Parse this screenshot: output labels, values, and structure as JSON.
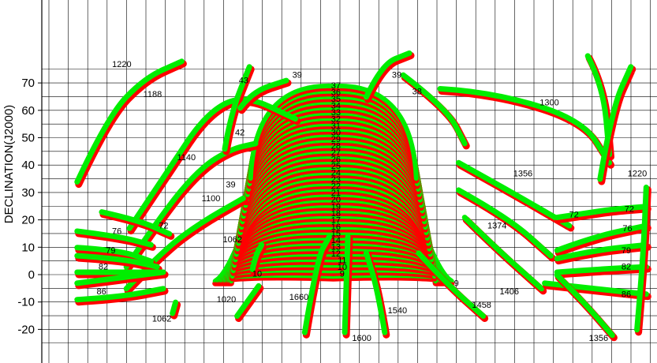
{
  "chart_data": {
    "type": "line",
    "ylabel": "DECLINATION(J2000)",
    "ylim": [
      -25,
      78
    ],
    "yticks": [
      -20,
      -10,
      0,
      10,
      20,
      30,
      40,
      50,
      60,
      70
    ],
    "grid": true,
    "colors": {
      "track_a": "#ff0000",
      "track_b": "#00ee00",
      "grid": "#000000"
    },
    "dome": {
      "bottom_dec": -1.5,
      "top_dec": 68,
      "arcs": 36,
      "row_labels": [
        "9",
        "10",
        "11",
        "12",
        "13",
        "14",
        "15",
        "16",
        "17",
        "18",
        "19",
        "20",
        "21",
        "22",
        "23",
        "24",
        "25",
        "26",
        "27",
        "28",
        "29",
        "30",
        "31",
        "32",
        "33",
        "34",
        "35",
        "36",
        "37"
      ]
    },
    "labels": [
      {
        "text": "1220",
        "x": 0.13,
        "y": 77
      },
      {
        "text": "1188",
        "x": 0.18,
        "y": 66
      },
      {
        "text": "1140",
        "x": 0.235,
        "y": 43
      },
      {
        "text": "1100",
        "x": 0.275,
        "y": 28
      },
      {
        "text": "1062",
        "x": 0.31,
        "y": 13
      },
      {
        "text": "1020",
        "x": 0.3,
        "y": -9
      },
      {
        "text": "1062",
        "x": 0.195,
        "y": -16
      },
      {
        "text": "43",
        "x": 0.328,
        "y": 71
      },
      {
        "text": "42",
        "x": 0.322,
        "y": 52
      },
      {
        "text": "39",
        "x": 0.307,
        "y": 33
      },
      {
        "text": "39",
        "x": 0.415,
        "y": 73
      },
      {
        "text": "10",
        "x": 0.35,
        "y": 0.5
      },
      {
        "text": "1660",
        "x": 0.418,
        "y": -8
      },
      {
        "text": "1600",
        "x": 0.52,
        "y": -23
      },
      {
        "text": "1540",
        "x": 0.578,
        "y": -13
      },
      {
        "text": "9",
        "x": 0.674,
        "y": -3
      },
      {
        "text": "1458",
        "x": 0.715,
        "y": -11
      },
      {
        "text": "1406",
        "x": 0.76,
        "y": -6
      },
      {
        "text": "1374",
        "x": 0.74,
        "y": 18
      },
      {
        "text": "1356",
        "x": 0.782,
        "y": 37
      },
      {
        "text": "1300",
        "x": 0.825,
        "y": 63
      },
      {
        "text": "39",
        "x": 0.577,
        "y": 73
      },
      {
        "text": "38",
        "x": 0.61,
        "y": 67
      },
      {
        "text": "1220",
        "x": 0.968,
        "y": 37
      },
      {
        "text": "72",
        "x": 0.865,
        "y": 22
      },
      {
        "text": "72",
        "x": 0.955,
        "y": 24
      },
      {
        "text": "76",
        "x": 0.952,
        "y": 17
      },
      {
        "text": "79",
        "x": 0.95,
        "y": 9
      },
      {
        "text": "82",
        "x": 0.95,
        "y": 3
      },
      {
        "text": "86",
        "x": 0.95,
        "y": -7
      },
      {
        "text": "1356",
        "x": 0.905,
        "y": -23
      },
      {
        "text": "76",
        "x": 0.122,
        "y": 16
      },
      {
        "text": "72",
        "x": 0.198,
        "y": 18
      },
      {
        "text": "79",
        "x": 0.112,
        "y": 9
      },
      {
        "text": "82",
        "x": 0.1,
        "y": 3
      },
      {
        "text": "86",
        "x": 0.097,
        "y": -6
      }
    ],
    "tracks": [
      {
        "points": [
          [
            0.06,
            33
          ],
          [
            0.11,
            57
          ],
          [
            0.17,
            71
          ],
          [
            0.23,
            77
          ]
        ]
      },
      {
        "points": [
          [
            0.145,
            16
          ],
          [
            0.21,
            38
          ],
          [
            0.27,
            58
          ],
          [
            0.33,
            65
          ],
          [
            0.415,
            56
          ]
        ]
      },
      {
        "points": [
          [
            0.14,
            2
          ],
          [
            0.2,
            22
          ],
          [
            0.26,
            38
          ],
          [
            0.31,
            45
          ],
          [
            0.35,
            47
          ]
        ]
      },
      {
        "points": [
          [
            0.14,
            -6
          ],
          [
            0.2,
            8
          ],
          [
            0.26,
            18
          ],
          [
            0.33,
            27
          ]
        ]
      },
      {
        "points": [
          [
            0.215,
            -15
          ],
          [
            0.22,
            -11
          ]
        ]
      },
      {
        "points": [
          [
            0.32,
            -16
          ],
          [
            0.355,
            -5
          ]
        ]
      },
      {
        "points": [
          [
            0.345,
            1
          ],
          [
            0.35,
            6
          ],
          [
            0.36,
            10
          ]
        ]
      },
      {
        "points": [
          [
            0.3,
            45
          ],
          [
            0.31,
            58
          ],
          [
            0.34,
            75
          ]
        ]
      },
      {
        "points": [
          [
            0.325,
            60
          ],
          [
            0.345,
            66
          ],
          [
            0.4,
            70
          ]
        ]
      },
      {
        "points": [
          [
            0.43,
            -22
          ],
          [
            0.45,
            5
          ],
          [
            0.47,
            13
          ]
        ]
      },
      {
        "points": [
          [
            0.495,
            -22
          ],
          [
            0.497,
            -8
          ],
          [
            0.5,
            13
          ]
        ]
      },
      {
        "points": [
          [
            0.56,
            -22
          ],
          [
            0.548,
            -6
          ],
          [
            0.53,
            7
          ]
        ]
      },
      {
        "points": [
          [
            0.615,
            7
          ],
          [
            0.66,
            -4
          ],
          [
            0.72,
            -16
          ]
        ]
      },
      {
        "points": [
          [
            0.69,
            20
          ],
          [
            0.74,
            9
          ],
          [
            0.815,
            -6
          ]
        ]
      },
      {
        "points": [
          [
            0.68,
            30
          ],
          [
            0.76,
            20
          ],
          [
            0.83,
            6
          ]
        ]
      },
      {
        "points": [
          [
            0.68,
            40
          ],
          [
            0.76,
            30
          ],
          [
            0.86,
            17
          ]
        ]
      },
      {
        "points": [
          [
            0.65,
            67
          ],
          [
            0.73,
            66
          ],
          [
            0.88,
            56
          ],
          [
            0.925,
            40
          ]
        ]
      },
      {
        "points": [
          [
            0.53,
            64
          ],
          [
            0.555,
            76
          ],
          [
            0.6,
            80
          ]
        ]
      },
      {
        "points": [
          [
            0.59,
            72
          ],
          [
            0.66,
            60
          ],
          [
            0.69,
            47
          ]
        ]
      },
      {
        "points": [
          [
            0.84,
            20
          ],
          [
            0.9,
            22
          ],
          [
            0.93,
            23
          ],
          [
            0.985,
            24
          ]
        ]
      },
      {
        "points": [
          [
            0.89,
            79
          ],
          [
            0.915,
            68
          ],
          [
            0.925,
            43
          ]
        ]
      },
      {
        "points": [
          [
            0.91,
            34
          ],
          [
            0.93,
            60
          ],
          [
            0.96,
            75
          ]
        ]
      },
      {
        "points": [
          [
            0.84,
            8
          ],
          [
            0.9,
            13
          ],
          [
            0.985,
            17
          ]
        ]
      },
      {
        "points": [
          [
            0.84,
            5
          ],
          [
            0.9,
            8
          ],
          [
            0.985,
            10
          ]
        ]
      },
      {
        "points": [
          [
            0.84,
            0
          ],
          [
            0.9,
            1
          ],
          [
            0.985,
            2
          ]
        ]
      },
      {
        "points": [
          [
            0.82,
            -4
          ],
          [
            0.9,
            -6
          ],
          [
            0.985,
            -8
          ]
        ]
      },
      {
        "points": [
          [
            0.84,
            -1
          ],
          [
            0.88,
            -10
          ],
          [
            0.93,
            -23
          ]
        ]
      },
      {
        "points": [
          [
            0.97,
            -21
          ],
          [
            0.98,
            5
          ],
          [
            0.985,
            31
          ]
        ]
      },
      {
        "points": [
          [
            0.06,
            9
          ],
          [
            0.13,
            8
          ],
          [
            0.18,
            4
          ]
        ]
      },
      {
        "points": [
          [
            0.06,
            15
          ],
          [
            0.13,
            13
          ],
          [
            0.18,
            10
          ]
        ]
      },
      {
        "points": [
          [
            0.06,
            6
          ],
          [
            0.13,
            5
          ],
          [
            0.19,
            2
          ]
        ]
      },
      {
        "points": [
          [
            0.06,
            0
          ],
          [
            0.13,
            0
          ],
          [
            0.2,
            0
          ]
        ]
      },
      {
        "points": [
          [
            0.06,
            -10
          ],
          [
            0.13,
            -9
          ],
          [
            0.2,
            -6
          ]
        ]
      },
      {
        "points": [
          [
            0.06,
            -4
          ],
          [
            0.13,
            -2
          ],
          [
            0.2,
            0
          ]
        ]
      },
      {
        "points": [
          [
            0.1,
            22
          ],
          [
            0.16,
            19
          ],
          [
            0.21,
            14
          ]
        ]
      }
    ]
  }
}
